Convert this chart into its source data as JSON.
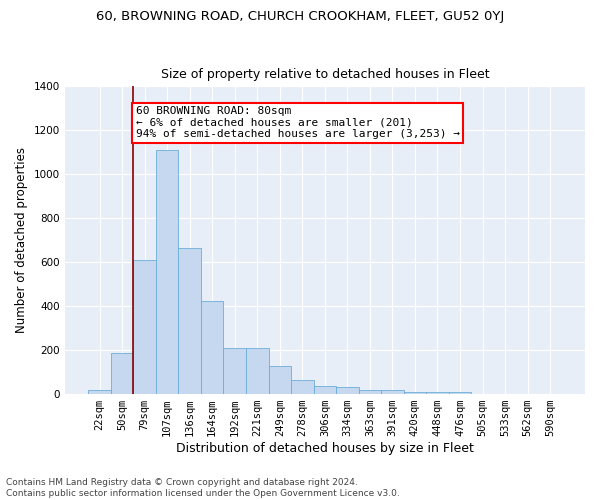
{
  "title1": "60, BROWNING ROAD, CHURCH CROOKHAM, FLEET, GU52 0YJ",
  "title2": "Size of property relative to detached houses in Fleet",
  "xlabel": "Distribution of detached houses by size in Fleet",
  "ylabel": "Number of detached properties",
  "bar_color": "#c5d8f0",
  "bar_edge_color": "#6baed6",
  "background_color": "#e8eef8",
  "categories": [
    "22sqm",
    "50sqm",
    "79sqm",
    "107sqm",
    "136sqm",
    "164sqm",
    "192sqm",
    "221sqm",
    "249sqm",
    "278sqm",
    "306sqm",
    "334sqm",
    "363sqm",
    "391sqm",
    "420sqm",
    "448sqm",
    "476sqm",
    "505sqm",
    "533sqm",
    "562sqm",
    "590sqm"
  ],
  "values": [
    18,
    188,
    610,
    1110,
    665,
    425,
    210,
    210,
    130,
    65,
    38,
    30,
    18,
    18,
    10,
    10,
    10,
    0,
    0,
    0,
    0
  ],
  "ylim": [
    0,
    1400
  ],
  "yticks": [
    0,
    200,
    400,
    600,
    800,
    1000,
    1200,
    1400
  ],
  "annotation_text": "60 BROWNING ROAD: 80sqm\n← 6% of detached houses are smaller (201)\n94% of semi-detached houses are larger (3,253) →",
  "vline_index": 2,
  "footer": "Contains HM Land Registry data © Crown copyright and database right 2024.\nContains public sector information licensed under the Open Government Licence v3.0.",
  "title1_fontsize": 9.5,
  "title2_fontsize": 9,
  "xlabel_fontsize": 9,
  "ylabel_fontsize": 8.5,
  "tick_fontsize": 7.5,
  "annotation_fontsize": 8,
  "footer_fontsize": 6.5
}
